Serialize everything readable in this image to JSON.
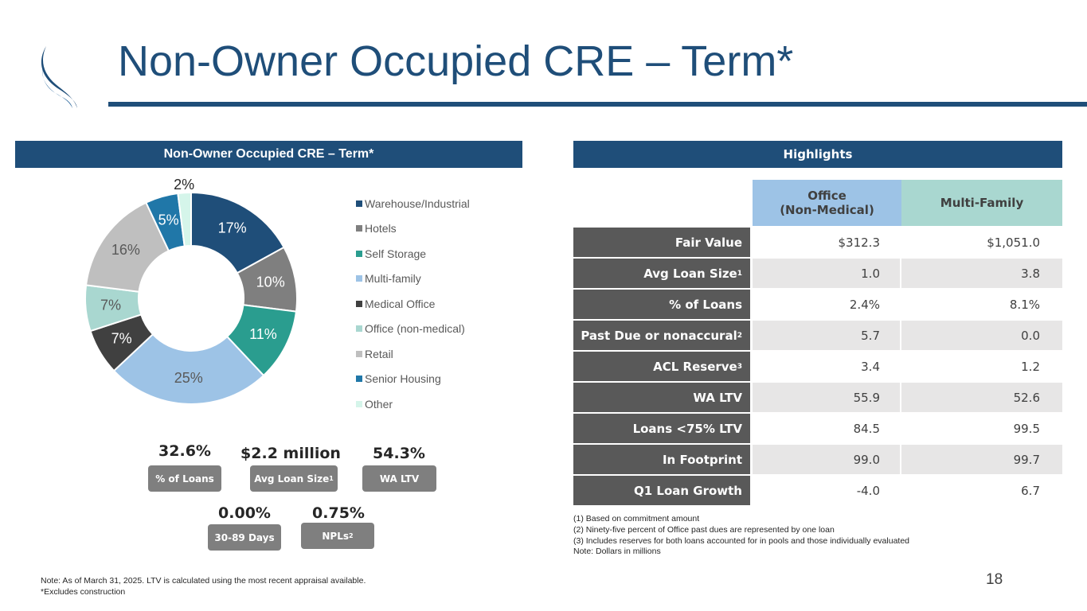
{
  "title": "Non-Owner Occupied CRE – Term*",
  "left_panel_title": "Non-Owner Occupied CRE – Term*",
  "right_panel_title": "Highlights",
  "colors": {
    "brand": "#1f4e79",
    "label_gray": "#595959",
    "tag_gray": "#7f7f7f"
  },
  "chart_data": {
    "type": "pie",
    "subtype": "donut",
    "legend_position": "right",
    "categories": [
      "Warehouse/Industrial",
      "Hotels",
      "Self Storage",
      "Multi-family",
      "Medical Office",
      "Office (non-medical)",
      "Retail",
      "Senior Housing",
      "Other"
    ],
    "values": [
      17,
      10,
      11,
      25,
      7,
      7,
      16,
      5,
      2
    ],
    "labels": [
      "17%",
      "10%",
      "11%",
      "25%",
      "7%",
      "7%",
      "16%",
      "5%",
      "2%"
    ],
    "colors": [
      "#1f4e79",
      "#7f7f7f",
      "#2a9d8f",
      "#9dc3e6",
      "#404040",
      "#a9d7d0",
      "#bfbfbf",
      "#2077a8",
      "#d5f5ea"
    ]
  },
  "kpis": {
    "pct_loans": {
      "value": "32.6%",
      "label": "% of Loans"
    },
    "avg_loan": {
      "value": "$2.2 million",
      "label": "Avg Loan Size",
      "sup": "1"
    },
    "wa_ltv": {
      "value": "54.3%",
      "label": "WA LTV"
    },
    "days_30_89": {
      "value": "0.00%",
      "label": "30-89 Days"
    },
    "npls": {
      "value": "0.75%",
      "label": "NPLs",
      "sup": "2"
    }
  },
  "table": {
    "col_office": "Office\n(Non-Medical)",
    "col_mf": "Multi-Family",
    "rows": [
      {
        "label": "Fair Value",
        "sup": "",
        "office": "$312.3",
        "mf": "$1,051.0"
      },
      {
        "label": "Avg Loan Size",
        "sup": "1",
        "office": "1.0",
        "mf": "3.8"
      },
      {
        "label": "% of Loans",
        "sup": "",
        "office": "2.4%",
        "mf": "8.1%"
      },
      {
        "label": "Past Due or nonaccural",
        "sup": "2",
        "office": "5.7",
        "mf": "0.0"
      },
      {
        "label": "ACL Reserve",
        "sup": "3",
        "office": "3.4",
        "mf": "1.2"
      },
      {
        "label": "WA LTV",
        "sup": "",
        "office": "55.9",
        "mf": "52.6"
      },
      {
        "label": "Loans <75% LTV",
        "sup": "",
        "office": "84.5",
        "mf": "99.5"
      },
      {
        "label": "In Footprint",
        "sup": "",
        "office": "99.0",
        "mf": "99.7"
      },
      {
        "label": "Q1 Loan Growth",
        "sup": "",
        "office": "-4.0",
        "mf": "6.7"
      }
    ]
  },
  "footnotes": [
    "(1) Based on commitment amount",
    "(2) Ninety-five percent of Office past dues are represented by one loan",
    "(3) Includes reserves for both loans accounted for in pools and those individually evaluated",
    "Note: Dollars in millions"
  ],
  "note_lines": [
    "Note: As of March 31, 2025. LTV is calculated using the most recent appraisal available.",
    "*Excludes construction"
  ],
  "page_number": "18"
}
